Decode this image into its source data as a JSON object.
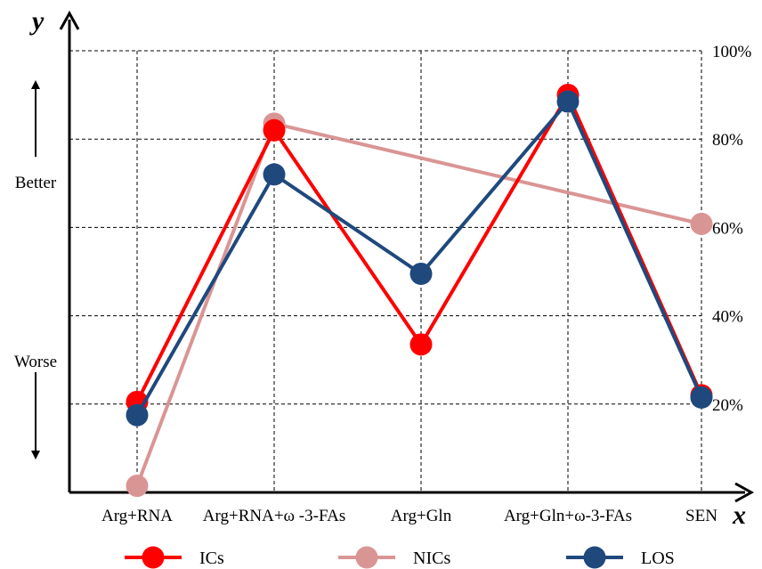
{
  "chart_data": {
    "type": "line",
    "xlabel": "x",
    "ylabel": "y",
    "categories": [
      "Arg+RNA",
      "Arg+RNA+ω -3-FAs",
      "Arg+Gln",
      "Arg+Gln+ω-3-FAs",
      "SEN"
    ],
    "yticks": [
      "20%",
      "40%",
      "60%",
      "80%",
      "100%"
    ],
    "ylim": [
      0,
      100
    ],
    "grid": true,
    "annotations": {
      "up": "Better",
      "down": "Worse"
    },
    "legend_position": "bottom",
    "series": [
      {
        "name": "NICs",
        "color": "#d99594",
        "values": [
          1.5,
          83.5,
          null,
          null,
          60.8
        ]
      },
      {
        "name": "ICs",
        "color": "#ff0000",
        "values": [
          20.5,
          82,
          33.5,
          90,
          22
        ]
      },
      {
        "name": "LOS",
        "color": "#1f497d",
        "values": [
          17.5,
          72,
          49.5,
          88.5,
          21.5
        ]
      }
    ]
  }
}
